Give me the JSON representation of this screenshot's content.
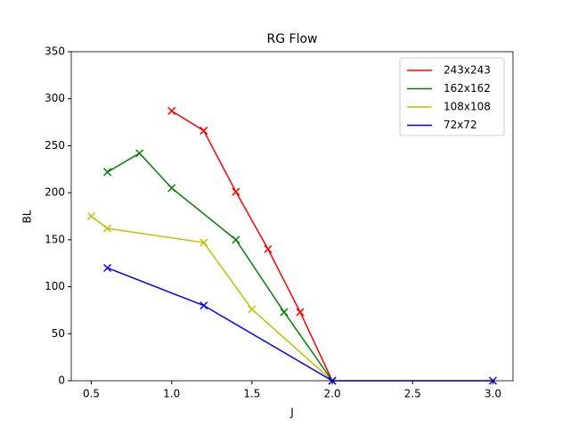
{
  "chart_data": {
    "type": "line",
    "title": "RG Flow",
    "x_label": "J",
    "y_label": "BL",
    "xlim": [
      0.375,
      3.125
    ],
    "ylim": [
      0,
      350
    ],
    "xticks": [
      0.5,
      {
        "value": 1,
        "label": "1.0"
      },
      1.5,
      {
        "value": 2,
        "label": "2.0"
      },
      2.5,
      {
        "value": 3,
        "label": "3.0"
      }
    ],
    "yticks": [
      0,
      50,
      100,
      150,
      200,
      250,
      300,
      350
    ],
    "legend": "upper right",
    "marker": "x",
    "series": [
      {
        "name": "243x243",
        "color": "#ff0000",
        "x": [
          1.0,
          1.2,
          1.4,
          1.6,
          1.8,
          2.0
        ],
        "values": [
          287,
          266,
          201,
          140,
          73,
          0
        ]
      },
      {
        "name": "162x162",
        "color": "#008000",
        "x": [
          0.6,
          0.8,
          1.0,
          1.4,
          1.7,
          2.0
        ],
        "values": [
          222,
          242,
          205,
          150,
          73,
          0
        ]
      },
      {
        "name": "108x108",
        "color": "#bfbf00",
        "x": [
          0.5,
          0.6,
          1.2,
          1.5,
          2.0
        ],
        "values": [
          175,
          162,
          147,
          76,
          0
        ]
      },
      {
        "name": "72x72",
        "color": "#0000ff",
        "x": [
          0.6,
          1.2,
          2.0,
          3.0
        ],
        "values": [
          120,
          80,
          0,
          0
        ]
      }
    ]
  }
}
